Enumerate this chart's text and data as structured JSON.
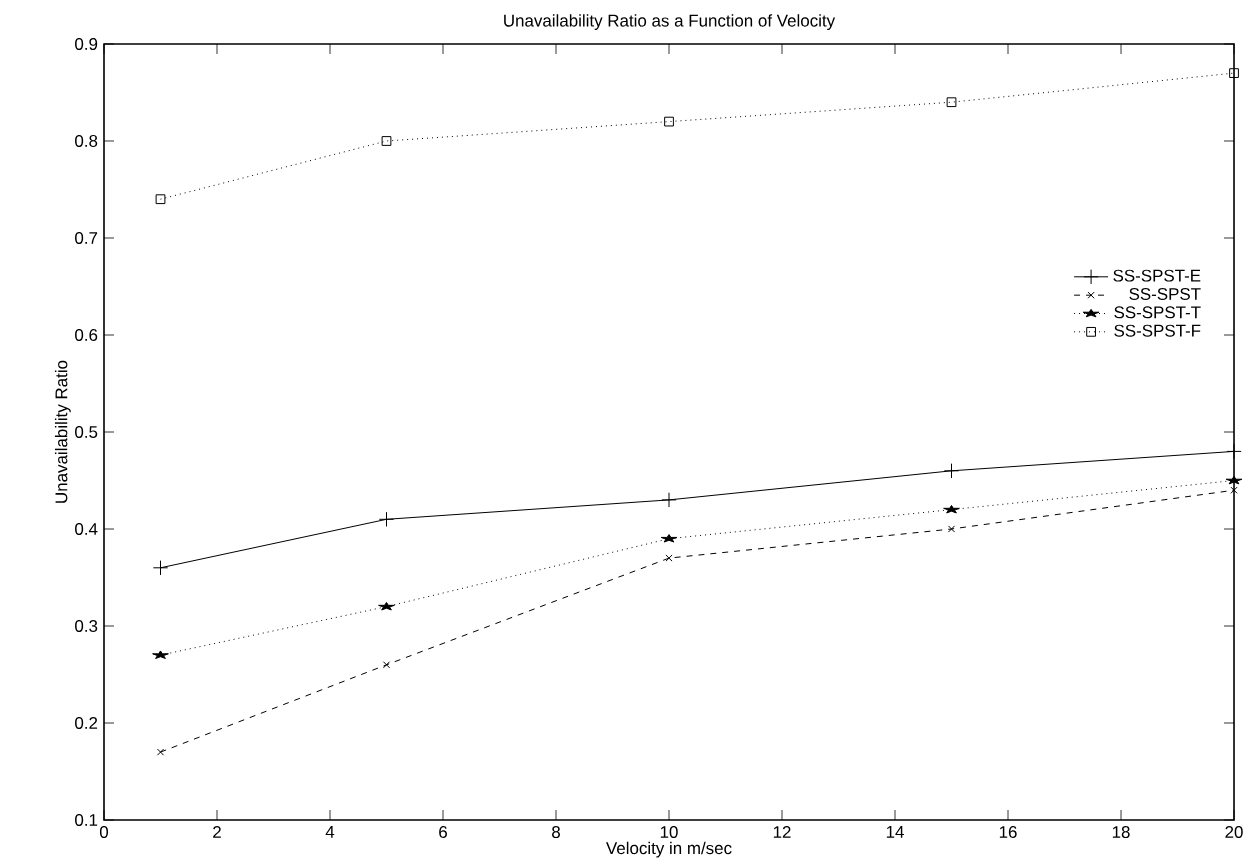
{
  "chart_data": {
    "type": "line",
    "title": "Unavailability Ratio as a Function of Velocity",
    "xlabel": "Velocity in m/sec",
    "ylabel": "Unavailability Ratio",
    "x": [
      1,
      5,
      10,
      15,
      20
    ],
    "series": [
      {
        "name": "SS-SPST-E",
        "color": "#000000",
        "marker": "plus",
        "line_style": "solid",
        "values": [
          0.36,
          0.41,
          0.43,
          0.46,
          0.48
        ]
      },
      {
        "name": "SS-SPST",
        "color": "#000000",
        "marker": "cross",
        "line_style": "dashed",
        "values": [
          0.17,
          0.26,
          0.37,
          0.4,
          0.44
        ]
      },
      {
        "name": "SS-SPST-T",
        "color": "#000000",
        "marker": "star",
        "line_style": "dotted",
        "values": [
          0.27,
          0.32,
          0.39,
          0.42,
          0.45
        ]
      },
      {
        "name": "SS-SPST-F",
        "color": "#000000",
        "marker": "square",
        "line_style": "dotted",
        "values": [
          0.74,
          0.8,
          0.82,
          0.84,
          0.87
        ]
      }
    ],
    "xlim": [
      0,
      20
    ],
    "xticks": [
      0,
      2,
      4,
      6,
      8,
      10,
      12,
      14,
      16,
      18,
      20
    ],
    "ylim": [
      0.1,
      0.9
    ],
    "yticks": [
      0.1,
      0.2,
      0.3,
      0.4,
      0.5,
      0.6,
      0.7,
      0.8,
      0.9
    ],
    "grid": false,
    "legend": "top right"
  }
}
